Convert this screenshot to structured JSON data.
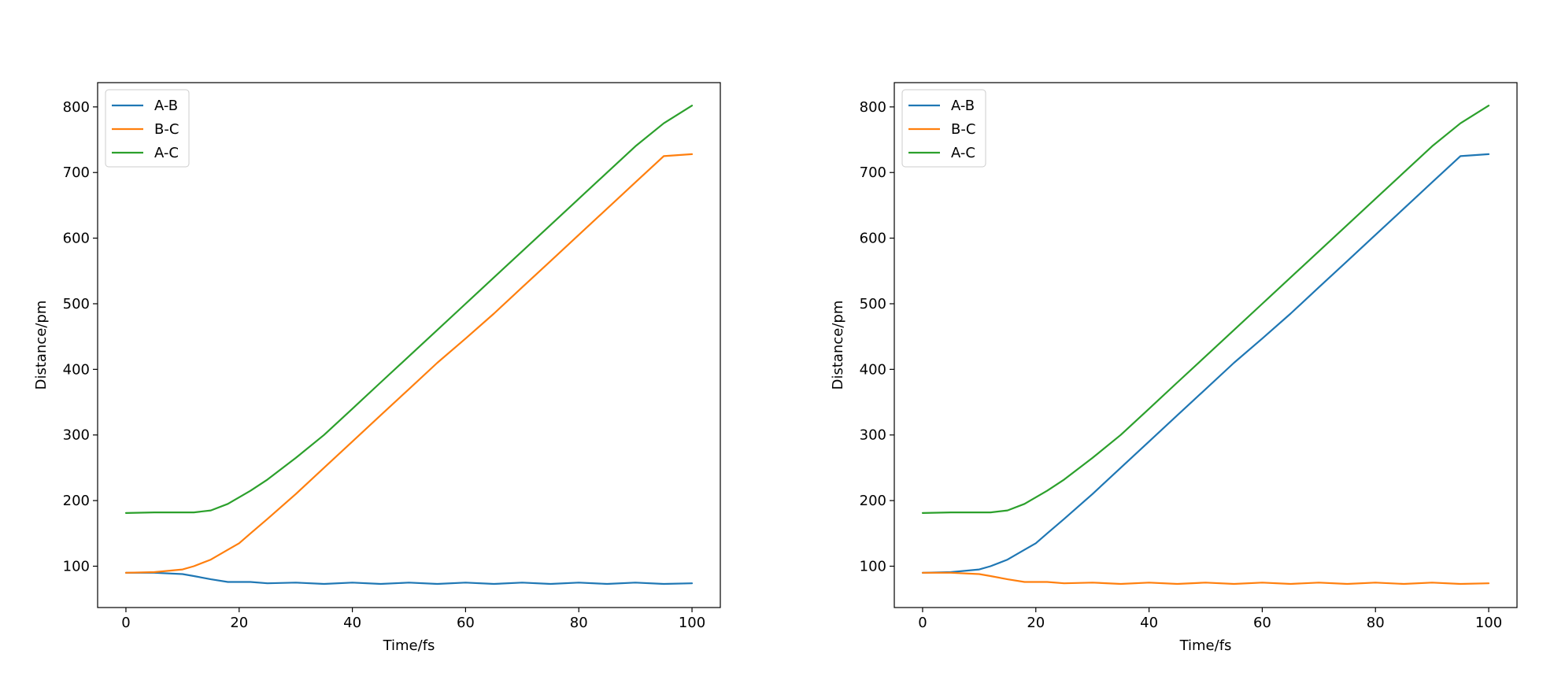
{
  "colors": {
    "A-B": "#1f77b4",
    "B-C": "#ff7f0e",
    "A-C": "#2ca02c"
  },
  "chart_data": [
    {
      "type": "line",
      "title": "",
      "xlabel": "Time/fs",
      "ylabel": "Distance/pm",
      "xlim": [
        -5,
        105
      ],
      "ylim": [
        37,
        837
      ],
      "xticks": [
        0,
        20,
        40,
        60,
        80,
        100
      ],
      "yticks": [
        100,
        200,
        300,
        400,
        500,
        600,
        700,
        800
      ],
      "grid": false,
      "legend": "top-left",
      "x": [
        0,
        5,
        10,
        12,
        15,
        18,
        20,
        22,
        25,
        30,
        35,
        40,
        45,
        50,
        55,
        60,
        65,
        70,
        75,
        80,
        85,
        90,
        95,
        100
      ],
      "series": [
        {
          "name": "A-B",
          "values": [
            90,
            90,
            88,
            85,
            80,
            76,
            76,
            76,
            74,
            75,
            73,
            75,
            73,
            75,
            73,
            75,
            73,
            75,
            73,
            75,
            73,
            75,
            73,
            74
          ]
        },
        {
          "name": "B-C",
          "values": [
            90,
            91,
            95,
            100,
            110,
            125,
            135,
            150,
            172,
            210,
            250,
            290,
            330,
            370,
            410,
            447,
            485,
            525,
            565,
            605,
            645,
            685,
            725,
            728
          ]
        },
        {
          "name": "A-C",
          "values": [
            181,
            182,
            182,
            182,
            185,
            195,
            205,
            215,
            232,
            265,
            300,
            340,
            380,
            420,
            460,
            500,
            540,
            580,
            620,
            660,
            700,
            740,
            775,
            802
          ]
        }
      ]
    },
    {
      "type": "line",
      "title": "",
      "xlabel": "Time/fs",
      "ylabel": "Distance/pm",
      "xlim": [
        -5,
        105
      ],
      "ylim": [
        37,
        837
      ],
      "xticks": [
        0,
        20,
        40,
        60,
        80,
        100
      ],
      "yticks": [
        100,
        200,
        300,
        400,
        500,
        600,
        700,
        800
      ],
      "grid": false,
      "legend": "top-left",
      "x": [
        0,
        5,
        10,
        12,
        15,
        18,
        20,
        22,
        25,
        30,
        35,
        40,
        45,
        50,
        55,
        60,
        65,
        70,
        75,
        80,
        85,
        90,
        95,
        100
      ],
      "series": [
        {
          "name": "A-B",
          "values": [
            90,
            91,
            95,
            100,
            110,
            125,
            135,
            150,
            172,
            210,
            250,
            290,
            330,
            370,
            410,
            447,
            485,
            525,
            565,
            605,
            645,
            685,
            725,
            728
          ]
        },
        {
          "name": "B-C",
          "values": [
            90,
            90,
            88,
            85,
            80,
            76,
            76,
            76,
            74,
            75,
            73,
            75,
            73,
            75,
            73,
            75,
            73,
            75,
            73,
            75,
            73,
            75,
            73,
            74
          ]
        },
        {
          "name": "A-C",
          "values": [
            181,
            182,
            182,
            182,
            185,
            195,
            205,
            215,
            232,
            265,
            300,
            340,
            380,
            420,
            460,
            500,
            540,
            580,
            620,
            660,
            700,
            740,
            775,
            802
          ]
        }
      ]
    }
  ]
}
